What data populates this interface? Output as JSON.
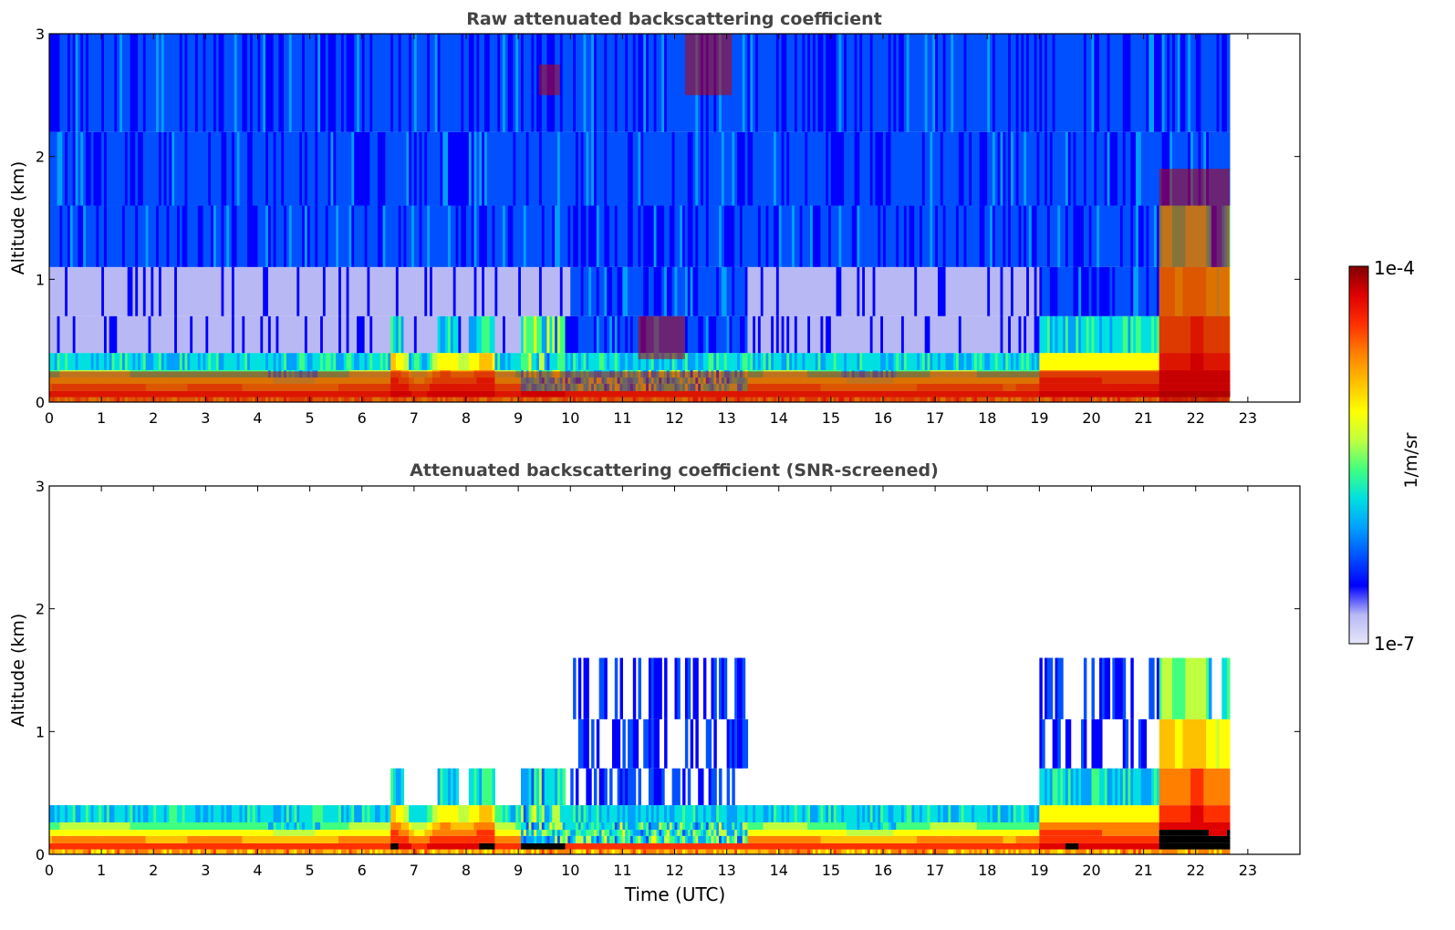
{
  "figure": {
    "xlabel": "Time (UTC)"
  },
  "colorbar": {
    "label": "1/m/sr",
    "max_label": "1e-4",
    "min_label": "1e-7",
    "stops": [
      "#e6e6fa",
      "#b8b8f5",
      "#0000ff",
      "#0050ff",
      "#00a0ff",
      "#00e0e0",
      "#40ff80",
      "#c0ff40",
      "#ffff00",
      "#ffc000",
      "#ff8000",
      "#ff3000",
      "#e00000",
      "#800000"
    ]
  },
  "chart_data": [
    {
      "type": "heatmap",
      "title": "Raw attenuated backscattering coefficient",
      "xlabel": "",
      "ylabel": "Altitude (km)",
      "xlim": [
        0,
        24
      ],
      "ylim": [
        0,
        3
      ],
      "xticks": [
        "0",
        "1",
        "2",
        "3",
        "4",
        "5",
        "6",
        "7",
        "8",
        "9",
        "10",
        "11",
        "12",
        "13",
        "14",
        "15",
        "16",
        "17",
        "18",
        "19",
        "20",
        "21",
        "22",
        "23"
      ],
      "yticks": [
        "0",
        "1",
        "2",
        "3"
      ],
      "data_end_hour": 22.65,
      "colorscale_min": "1e-7",
      "colorscale_max": "1e-4",
      "features": [
        {
          "name": "surface layer",
          "x": [
            0,
            22.65
          ],
          "y": [
            0,
            0.25
          ]
        },
        {
          "name": "cloud",
          "x": [
            9.4,
            9.8
          ],
          "y": [
            2.5,
            2.75
          ]
        },
        {
          "name": "cloud",
          "x": [
            12.2,
            13.1
          ],
          "y": [
            2.5,
            3.0
          ]
        },
        {
          "name": "cloud",
          "x": [
            11.3,
            12.2
          ],
          "y": [
            0.35,
            0.7
          ]
        },
        {
          "name": "boundary layer",
          "x": [
            21.3,
            22.65
          ],
          "y": [
            0,
            1.9
          ]
        }
      ]
    },
    {
      "type": "heatmap",
      "title": "Attenuated backscattering coefficient (SNR-screened)",
      "xlabel": "Time (UTC)",
      "ylabel": "Altitude (km)",
      "xlim": [
        0,
        24
      ],
      "ylim": [
        0,
        3
      ],
      "xticks": [
        "0",
        "1",
        "2",
        "3",
        "4",
        "5",
        "6",
        "7",
        "8",
        "9",
        "10",
        "11",
        "12",
        "13",
        "14",
        "15",
        "16",
        "17",
        "18",
        "19",
        "20",
        "21",
        "22",
        "23"
      ],
      "yticks": [
        "0",
        "1",
        "2",
        "3"
      ],
      "data_end_hour": 22.65,
      "colorscale_min": "1e-7",
      "colorscale_max": "1e-4"
    }
  ]
}
